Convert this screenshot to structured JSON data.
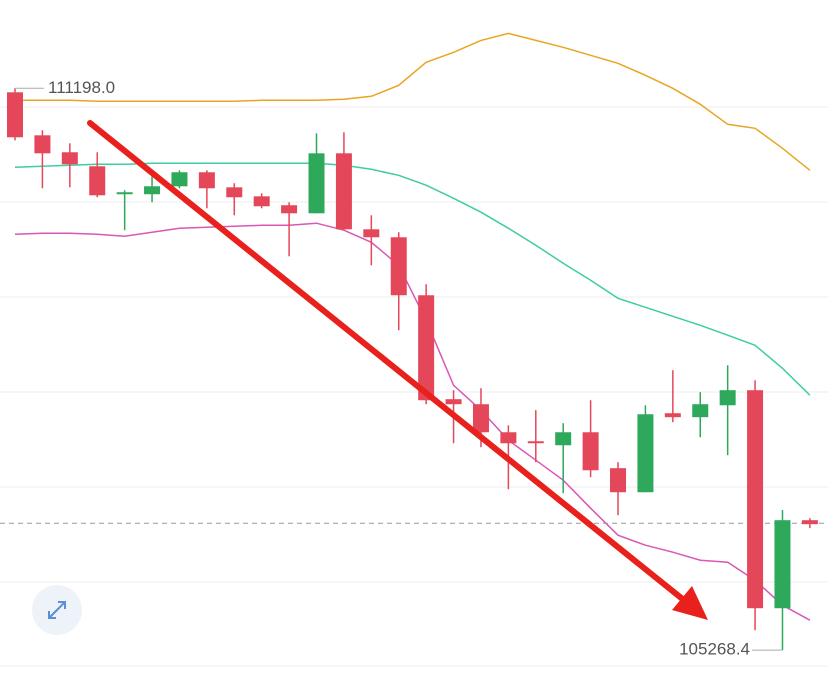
{
  "chart_data": {
    "type": "candlestick",
    "ylim": [
      105080,
      112130
    ],
    "up_color": "#2ea85a",
    "down_color": "#e5475a",
    "open": [
      111156,
      110702,
      110523,
      110375,
      110080,
      110080,
      110164,
      110312,
      110153,
      110058,
      109964,
      109879,
      110512,
      109710,
      109626,
      109014,
      107917,
      107864,
      107568,
      107473,
      107431,
      107568,
      107189,
      106935,
      107769,
      107727,
      107853,
      108012,
      105711,
      106640
    ],
    "high": [
      111198,
      110755,
      110618,
      110523,
      110122,
      110280,
      110333,
      110333,
      110196,
      110090,
      109995,
      110723,
      110734,
      109858,
      109679,
      109130,
      108012,
      108033,
      107642,
      107801,
      107664,
      107906,
      107252,
      107853,
      108223,
      107991,
      108275,
      108117,
      106746,
      106661
    ],
    "low": [
      110649,
      110143,
      110153,
      110048,
      109700,
      109995,
      110143,
      109932,
      109858,
      109932,
      109425,
      109879,
      109700,
      109330,
      108645,
      107864,
      107452,
      107410,
      106967,
      107252,
      106925,
      107094,
      106693,
      106935,
      107674,
      107516,
      107326,
      105479,
      105268.4,
      106556
    ],
    "close": [
      110681,
      110512,
      110396,
      110069,
      110101,
      110164,
      110312,
      110143,
      110048,
      109953,
      109879,
      110512,
      109710,
      109626,
      109014,
      107906,
      107864,
      107568,
      107452,
      107452,
      107568,
      107167,
      106935,
      107758,
      107727,
      107864,
      108012,
      105711,
      106640,
      106598
    ],
    "series": [
      {
        "color": "#e9a521",
        "values": [
          111071,
          111071,
          111071,
          111061,
          111061,
          111061,
          111061,
          111061,
          111061,
          111071,
          111071,
          111071,
          111082,
          111114,
          111230,
          111472,
          111578,
          111704,
          111778,
          111704,
          111631,
          111546,
          111462,
          111335,
          111198,
          111029,
          110818,
          110776,
          110565,
          110333
        ]
      },
      {
        "color": "#3fcda0",
        "values": [
          110364,
          110375,
          110386,
          110396,
          110396,
          110407,
          110407,
          110407,
          110407,
          110407,
          110407,
          110407,
          110386,
          110343,
          110280,
          110175,
          110037,
          109890,
          109721,
          109541,
          109352,
          109172,
          108982,
          108887,
          108792,
          108697,
          108592,
          108486,
          108243,
          107959
        ]
      },
      {
        "color": "#d957b5",
        "values": [
          109658,
          109668,
          109668,
          109658,
          109637,
          109679,
          109721,
          109731,
          109742,
          109752,
          109752,
          109774,
          109700,
          109573,
          109330,
          108750,
          108064,
          107801,
          107484,
          107273,
          107062,
          106767,
          106482,
          106376,
          106302,
          106218,
          106197,
          106007,
          105743,
          105585
        ]
      }
    ],
    "price_line": 106608,
    "max_label": {
      "value": 111198.0,
      "label": "111198.0"
    },
    "min_label": {
      "value": 105268.4,
      "label": "105268.4"
    }
  }
}
